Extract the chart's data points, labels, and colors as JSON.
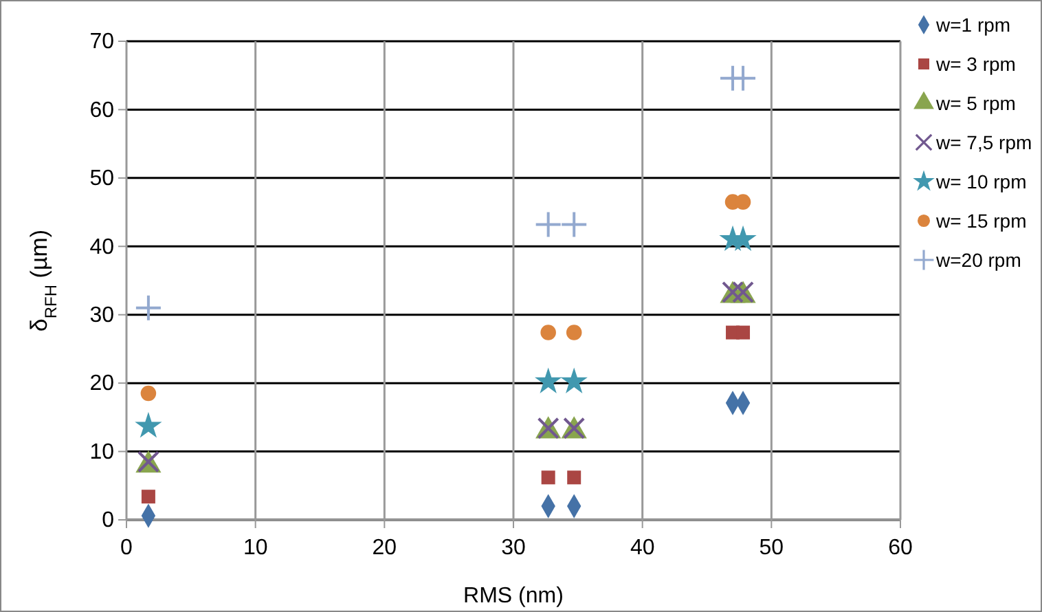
{
  "chart_data": {
    "type": "scatter",
    "xlabel": "RMS (nm)",
    "ylabel": "δ$_{RFH}$ (µm)",
    "xlim": [
      0,
      60
    ],
    "xticks": [
      0,
      10,
      20,
      30,
      40,
      50,
      60
    ],
    "ylim": [
      0,
      70
    ],
    "yticks": [
      0,
      10,
      20,
      30,
      40,
      50,
      60,
      70
    ],
    "grid": true,
    "legend": "right",
    "series": [
      {
        "name": "w=1 rpm",
        "color": "#4572a7",
        "marker": "diamond",
        "x": [
          1.7,
          32.7,
          34.7,
          47,
          47.8
        ],
        "values": [
          0.6,
          2,
          2,
          17.1,
          17.1
        ]
      },
      {
        "name": "w= 3 rpm",
        "color": "#aa4643",
        "marker": "square",
        "x": [
          1.7,
          32.7,
          34.7,
          47,
          47.8
        ],
        "values": [
          3.4,
          6.2,
          6.2,
          27.4,
          27.4
        ]
      },
      {
        "name": "w= 5 rpm",
        "color": "#89a54e",
        "marker": "triangle",
        "x": [
          1.7,
          32.7,
          34.7,
          47,
          47.8
        ],
        "values": [
          8,
          13,
          13,
          32.8,
          32.8
        ]
      },
      {
        "name": "w= 7,5 rpm",
        "color": "#71588f",
        "marker": "x",
        "x": [
          1.7,
          32.7,
          34.7,
          47,
          47.8
        ],
        "values": [
          8.5,
          13.4,
          13.4,
          33.3,
          33.3
        ]
      },
      {
        "name": "w= 10 rpm",
        "color": "#4198af",
        "marker": "star",
        "x": [
          1.7,
          32.7,
          34.7,
          47,
          47.8
        ],
        "values": [
          13.7,
          20.2,
          20.2,
          41,
          41
        ]
      },
      {
        "name": "w= 15 rpm",
        "color": "#db843d",
        "marker": "circle",
        "x": [
          1.7,
          32.7,
          34.7,
          47,
          47.8
        ],
        "values": [
          18.5,
          27.4,
          27.4,
          46.5,
          46.5
        ]
      },
      {
        "name": "w=20 rpm",
        "color": "#93a9cf",
        "marker": "cross",
        "x": [
          1.7,
          32.7,
          34.7,
          47,
          47.8
        ],
        "values": [
          31,
          43.2,
          43.2,
          64.6,
          64.6
        ]
      }
    ]
  }
}
